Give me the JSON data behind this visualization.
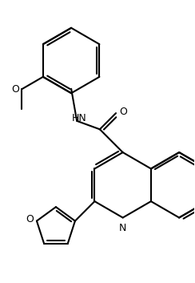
{
  "bg_color": "#ffffff",
  "line_color": "#000000",
  "line_width": 1.5,
  "dbo": 0.05,
  "shrink": 0.1,
  "figsize": [
    2.44,
    3.53
  ],
  "dpi": 100,
  "xlim": [
    -1.5,
    1.7
  ],
  "ylim": [
    -2.0,
    2.2
  ],
  "font_size": 9.0
}
